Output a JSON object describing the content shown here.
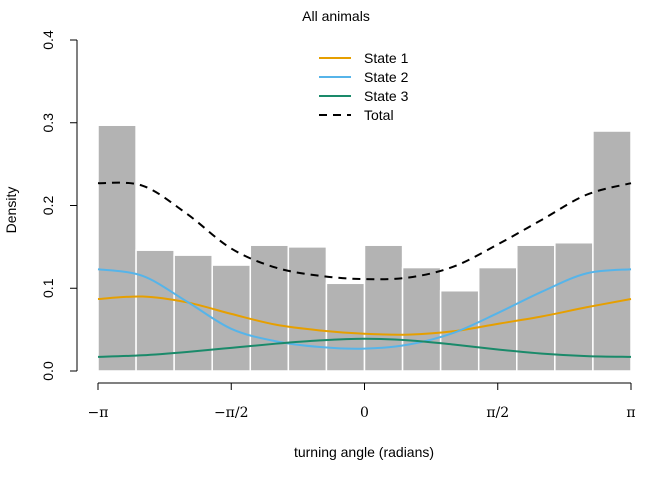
{
  "chart_data": {
    "type": "bar",
    "title": "All animals",
    "xlabel": "turning angle (radians)",
    "ylabel": "Density",
    "xlim": [
      -3.14159,
      3.14159
    ],
    "ylim": [
      0,
      0.4
    ],
    "x_ticks": [
      {
        "value": -3.14159,
        "label": "−π"
      },
      {
        "value": -1.5708,
        "label": "−π/2"
      },
      {
        "value": 0,
        "label": "0"
      },
      {
        "value": 1.5708,
        "label": "π/2"
      },
      {
        "value": 3.14159,
        "label": "π"
      }
    ],
    "y_ticks": [
      {
        "value": 0,
        "label": "0.0"
      },
      {
        "value": 0.1,
        "label": "0.1"
      },
      {
        "value": 0.2,
        "label": "0.2"
      },
      {
        "value": 0.3,
        "label": "0.3"
      },
      {
        "value": 0.4,
        "label": "0.4"
      }
    ],
    "histogram": {
      "bin_edges": [
        -3.14159,
        -2.6928,
        -2.244,
        -1.7952,
        -1.3464,
        -0.8976,
        -0.4488,
        0,
        0.4488,
        0.8976,
        1.3464,
        1.7952,
        2.244,
        2.6928,
        3.14159
      ],
      "densities": [
        0.297,
        0.146,
        0.14,
        0.128,
        0.152,
        0.15,
        0.106,
        0.152,
        0.125,
        0.097,
        0.125,
        0.152,
        0.155,
        0.29
      ],
      "fill": "#b3b3b3",
      "stroke": "#ffffff"
    },
    "grid": false,
    "legend_position": "top-center",
    "series": [
      {
        "name": "State 1",
        "color": "#E69F00",
        "dash": "solid",
        "x": [
          -3.14159,
          -2.618,
          -2.0944,
          -1.5708,
          -1.0472,
          -0.5236,
          0,
          0.5236,
          1.0472,
          1.5708,
          2.0944,
          2.618,
          3.14159
        ],
        "values": [
          0.087,
          0.09,
          0.083,
          0.069,
          0.056,
          0.049,
          0.045,
          0.044,
          0.048,
          0.057,
          0.066,
          0.077,
          0.087
        ]
      },
      {
        "name": "State 2",
        "color": "#56B4E9",
        "dash": "solid",
        "x": [
          -3.14159,
          -2.618,
          -2.0944,
          -1.5708,
          -1.0472,
          -0.5236,
          0,
          0.5236,
          1.0472,
          1.5708,
          2.0944,
          2.618,
          3.14159
        ],
        "values": [
          0.123,
          0.115,
          0.084,
          0.051,
          0.036,
          0.029,
          0.027,
          0.032,
          0.046,
          0.07,
          0.096,
          0.118,
          0.123
        ]
      },
      {
        "name": "State 3",
        "color": "#1A8A6A",
        "dash": "solid",
        "x": [
          -3.14159,
          -2.618,
          -2.0944,
          -1.5708,
          -1.0472,
          -0.5236,
          0,
          0.5236,
          1.0472,
          1.5708,
          2.0944,
          2.618,
          3.14159
        ],
        "values": [
          0.017,
          0.019,
          0.023,
          0.028,
          0.033,
          0.037,
          0.039,
          0.037,
          0.032,
          0.026,
          0.021,
          0.018,
          0.017
        ]
      },
      {
        "name": "Total",
        "color": "#000000",
        "dash": "dashed",
        "x": [
          -3.14159,
          -2.618,
          -2.0944,
          -1.5708,
          -1.0472,
          -0.5236,
          0,
          0.5236,
          1.0472,
          1.5708,
          2.0944,
          2.618,
          3.14159
        ],
        "values": [
          0.227,
          0.224,
          0.19,
          0.148,
          0.125,
          0.115,
          0.111,
          0.113,
          0.126,
          0.153,
          0.183,
          0.213,
          0.227
        ]
      }
    ]
  }
}
